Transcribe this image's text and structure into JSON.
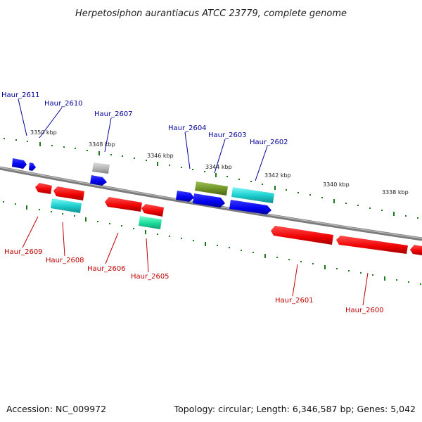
{
  "title": "Herpetosiphon aurantiacus ATCC 23779, complete genome",
  "footer": {
    "accession": "Accession: NC_009972",
    "summary": "Topology: circular; Length: 6,346,587 bp; Genes: 5,042"
  },
  "colors": {
    "background": "#ffffff",
    "backbone": "#8a8a8a",
    "tick": "#1a7a1a",
    "forward_label": "#00009a",
    "reverse_label": "#c00000",
    "gene_blue": "#0000ee",
    "gene_red": "#ee0000",
    "gene_cyan": "#20d0d0",
    "gene_gray": "#b0b0b0",
    "gene_olive": "#6b8e23",
    "gene_green": "#20e0a0"
  },
  "scale_labels": [
    {
      "id": "kbp-3350",
      "text": "3350 kbp"
    },
    {
      "id": "kbp-3348",
      "text": "3348 kbp"
    },
    {
      "id": "kbp-3346",
      "text": "3346 kbp"
    },
    {
      "id": "kbp-3344",
      "text": "3344 kbp"
    },
    {
      "id": "kbp-3342",
      "text": "3342 kbp"
    },
    {
      "id": "kbp-3340",
      "text": "3340 kbp"
    },
    {
      "id": "kbp-3338",
      "text": "3338 kbp"
    }
  ],
  "forward_genes": [
    {
      "name": "Haur_2611",
      "color": "blue"
    },
    {
      "name": "Haur_2610",
      "color": "blue"
    },
    {
      "name": "Haur_2607",
      "color": "gray"
    },
    {
      "name": "Haur_2604",
      "color": "blue"
    },
    {
      "name": "Haur_2603",
      "color": "olive"
    },
    {
      "name": "Haur_2602",
      "color": "cyan"
    }
  ],
  "reverse_genes": [
    {
      "name": "Haur_2609",
      "color": "red"
    },
    {
      "name": "Haur_2608",
      "color": "cyan"
    },
    {
      "name": "Haur_2606",
      "color": "red"
    },
    {
      "name": "Haur_2605",
      "color": "green"
    },
    {
      "name": "Haur_2601",
      "color": "red"
    },
    {
      "name": "Haur_2600",
      "color": "red"
    }
  ]
}
